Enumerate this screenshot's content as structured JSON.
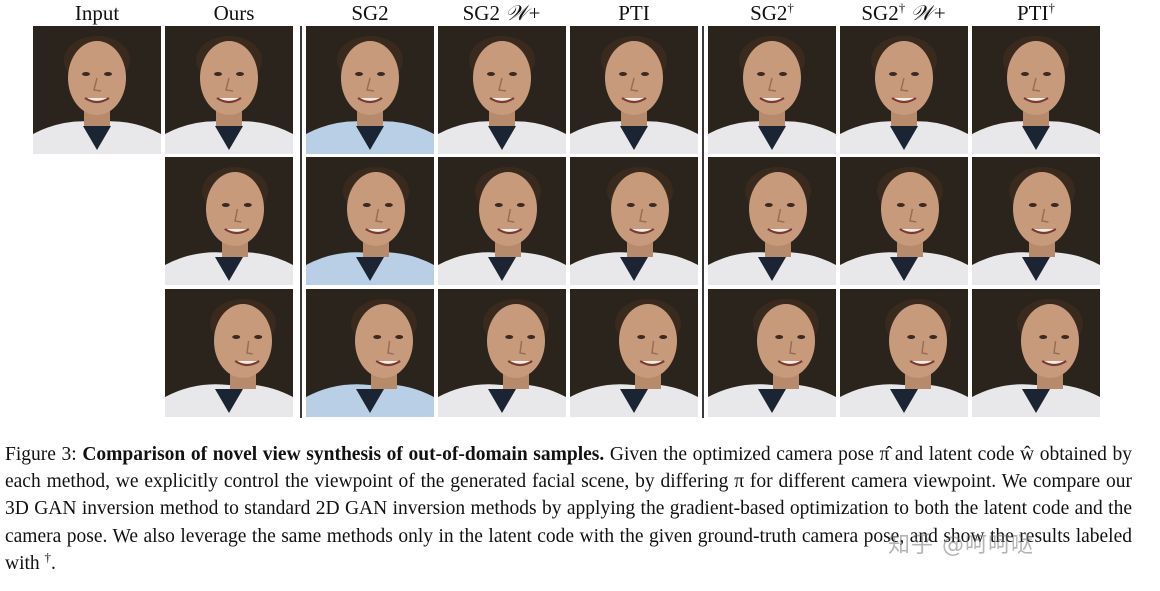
{
  "headers": {
    "input": "Input",
    "ours": "Ours",
    "sg2": "SG2",
    "sg2w": "SG2",
    "sg2w_suffix": "𝒲+",
    "pti": "PTI",
    "sg2d": "SG2",
    "sg2dw": "SG2",
    "sg2dw_suffix": "𝒲+",
    "ptid": "PTI",
    "dagger": "†"
  },
  "caption": {
    "figure_label": "Figure 3:",
    "title": "Comparison of novel view synthesis of out-of-domain samples.",
    "body": "Given the optimized camera pose π̂ and latent code ŵ obtained by each method, we explicitly control the viewpoint of the generated facial scene, by differing π for different camera viewpoint. We compare our 3D GAN inversion method to standard 2D GAN inversion methods by applying the gradient-based optimization to both the latent code and the camera pose. We also leverage the same methods only in the latent code with the given ground-truth camera pose, and show the results labeled with",
    "dagger": "†",
    "end": "."
  },
  "watermark": "知乎 @呵呵哒",
  "colors": {
    "background": "#2b241d",
    "skin": "#c89a7c",
    "hair": "#3a2a1e",
    "shirt_white": "#e8e8ea",
    "shirt_blue": "#b8cfe6",
    "collar_dark": "#1b2433"
  }
}
